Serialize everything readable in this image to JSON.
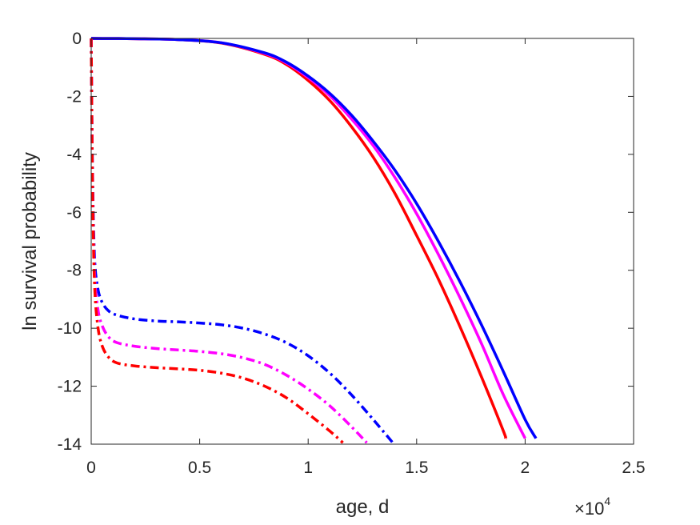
{
  "chart_data": {
    "type": "line",
    "title": "",
    "xlabel": "age, d",
    "ylabel": "ln survival probability",
    "x_multiplier_base": "×10",
    "x_multiplier_exponent": "4",
    "xlim": [
      0,
      25000
    ],
    "ylim": [
      -14,
      0
    ],
    "xticks": [
      0,
      5000,
      10000,
      15000,
      20000,
      25000
    ],
    "xtick_labels": [
      "0",
      "0.5",
      "1",
      "1.5",
      "2",
      "2.5"
    ],
    "yticks": [
      0,
      -2,
      -4,
      -6,
      -8,
      -10,
      -12,
      -14
    ],
    "ytick_labels": [
      "0",
      "-2",
      "-4",
      "-6",
      "-8",
      "-10",
      "-12",
      "-14"
    ],
    "grid": false,
    "legend": "none",
    "series": [
      {
        "style": "solid",
        "color": "#ff0000",
        "x": [
          0,
          2000,
          4000,
          6000,
          8000,
          9000,
          10000,
          11000,
          12000,
          13000,
          14000,
          15000,
          16000,
          17000,
          18000,
          19000,
          19100
        ],
        "y": [
          0,
          -0.01,
          -0.04,
          -0.16,
          -0.55,
          -0.9,
          -1.45,
          -2.15,
          -3.05,
          -4.1,
          -5.35,
          -6.8,
          -8.3,
          -9.95,
          -11.7,
          -13.55,
          -13.8
        ]
      },
      {
        "style": "solid",
        "color": "#ff00ff",
        "x": [
          0,
          2000,
          4000,
          6000,
          8000,
          9000,
          10000,
          11000,
          12000,
          13000,
          14000,
          15000,
          16000,
          17000,
          18000,
          19000,
          20000
        ],
        "y": [
          0,
          -0.01,
          -0.04,
          -0.15,
          -0.52,
          -0.85,
          -1.35,
          -1.98,
          -2.78,
          -3.7,
          -4.8,
          -6.05,
          -7.45,
          -8.95,
          -10.55,
          -12.3,
          -13.8
        ]
      },
      {
        "style": "solid",
        "color": "#0000ff",
        "x": [
          0,
          2000,
          4000,
          6000,
          8000,
          9000,
          10000,
          11000,
          12000,
          13000,
          14000,
          15000,
          16000,
          17000,
          18000,
          19000,
          20000,
          20500
        ],
        "y": [
          0,
          -0.01,
          -0.04,
          -0.15,
          -0.5,
          -0.82,
          -1.3,
          -1.9,
          -2.65,
          -3.55,
          -4.55,
          -5.7,
          -7.0,
          -8.4,
          -9.9,
          -11.5,
          -13.15,
          -13.8
        ]
      },
      {
        "style": "dashdot",
        "color": "#0000ff",
        "x": [
          0,
          60,
          150,
          300,
          500,
          800,
          1200,
          2000,
          3000,
          4000,
          5000,
          6000,
          7000,
          8000,
          9000,
          10000,
          11000,
          12000,
          13000,
          13900
        ],
        "y": [
          0,
          -4.5,
          -7.5,
          -8.6,
          -9.1,
          -9.4,
          -9.55,
          -9.68,
          -9.75,
          -9.78,
          -9.82,
          -9.88,
          -10.0,
          -10.2,
          -10.5,
          -10.95,
          -11.55,
          -12.3,
          -13.15,
          -13.95
        ]
      },
      {
        "style": "dashdot",
        "color": "#ff00ff",
        "x": [
          0,
          60,
          150,
          300,
          500,
          800,
          1200,
          2000,
          3000,
          4000,
          5000,
          6000,
          7000,
          8000,
          9000,
          10000,
          11000,
          12000,
          12700
        ],
        "y": [
          0,
          -4.8,
          -8.0,
          -9.3,
          -9.9,
          -10.3,
          -10.5,
          -10.62,
          -10.7,
          -10.75,
          -10.8,
          -10.88,
          -11.02,
          -11.25,
          -11.62,
          -12.1,
          -12.68,
          -13.4,
          -13.95
        ]
      },
      {
        "style": "dashdot",
        "color": "#ff0000",
        "x": [
          0,
          60,
          150,
          300,
          500,
          800,
          1200,
          2000,
          3000,
          4000,
          5000,
          6000,
          7000,
          8000,
          9000,
          10000,
          11000,
          11600
        ],
        "y": [
          0,
          -5.0,
          -8.4,
          -9.9,
          -10.6,
          -11.0,
          -11.2,
          -11.3,
          -11.36,
          -11.4,
          -11.45,
          -11.55,
          -11.72,
          -12.0,
          -12.4,
          -12.95,
          -13.55,
          -13.95
        ]
      }
    ]
  }
}
